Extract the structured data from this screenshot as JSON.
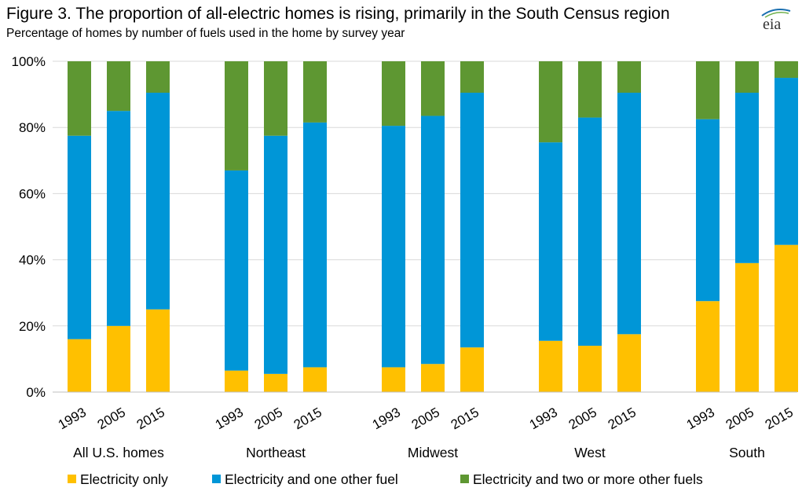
{
  "header": {
    "title": "Figure 3. The proportion of all-electric homes is rising, primarily in the South Census region",
    "subtitle": "Percentage of homes by number of fuels used in the home by survey year",
    "logo_text": "eia"
  },
  "chart_data": {
    "type": "bar",
    "stacked": true,
    "ylim": [
      0,
      100
    ],
    "yticks": [
      "0%",
      "20%",
      "40%",
      "60%",
      "80%",
      "100%"
    ],
    "grid": true,
    "legend_position": "bottom",
    "groups": [
      {
        "label": "All U.S. homes",
        "years": [
          "1993",
          "2005",
          "2015"
        ]
      },
      {
        "label": "Northeast",
        "years": [
          "1993",
          "2005",
          "2015"
        ]
      },
      {
        "label": "Midwest",
        "years": [
          "1993",
          "2005",
          "2015"
        ]
      },
      {
        "label": "West",
        "years": [
          "1993",
          "2005",
          "2015"
        ]
      },
      {
        "label": "South",
        "years": [
          "1993",
          "2005",
          "2015"
        ]
      }
    ],
    "series": [
      {
        "name": "Electricity only",
        "color": "#FFC000",
        "values": [
          16,
          20,
          25,
          6.5,
          5.5,
          7.5,
          7.5,
          8.5,
          13.5,
          15.5,
          14,
          17.5,
          27.5,
          39,
          44.5
        ]
      },
      {
        "name": "Electricity and one other fuel",
        "color": "#0096D7",
        "values": [
          61.5,
          65,
          65.5,
          60.5,
          72,
          74,
          73,
          75,
          77,
          60,
          69,
          73,
          55,
          51.5,
          50.5
        ]
      },
      {
        "name": "Electricity and two or more other fuels",
        "color": "#5E9732",
        "values": [
          22.5,
          15,
          9.5,
          33,
          22.5,
          18.5,
          19.5,
          16.5,
          9.5,
          24.5,
          17,
          9.5,
          17.5,
          9.5,
          5
        ]
      }
    ]
  }
}
